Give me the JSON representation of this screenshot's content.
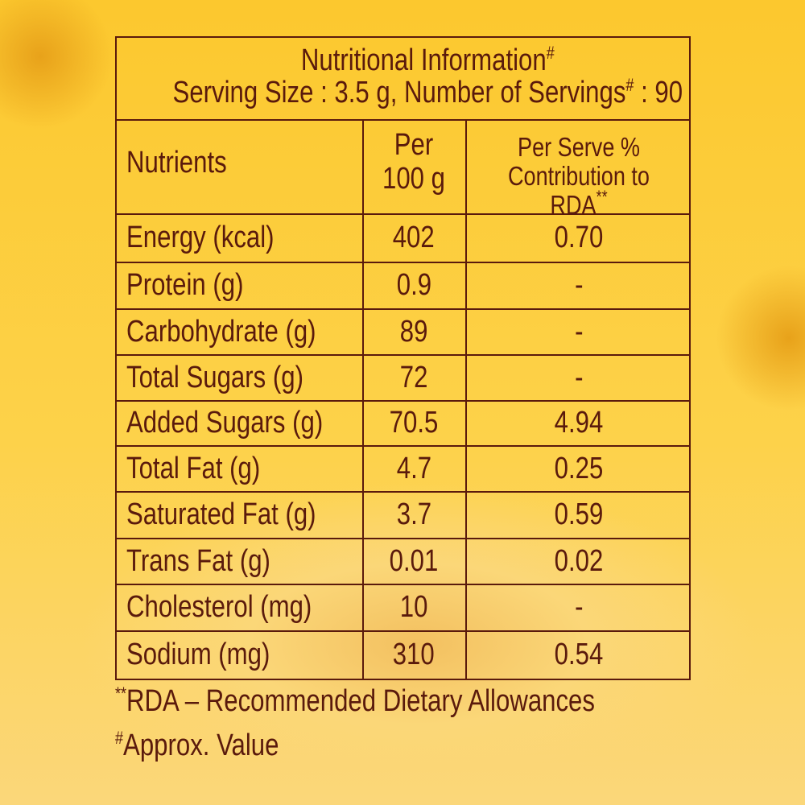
{
  "header": {
    "title": "Nutritional Information",
    "title_mark": "#",
    "serving": "Serving Size : 3.5 g, Number of Servings",
    "serving_mark": "#",
    "servings": ": 90"
  },
  "table": {
    "columns": [
      "Nutrients",
      "Per 100 g",
      "Per Serve % Contribution to RDA"
    ],
    "rda_mark": "**",
    "rows": [
      [
        "Energy (kcal)",
        "402",
        "0.70"
      ],
      [
        "Protein (g)",
        "0.9",
        "-"
      ],
      [
        "Carbohydrate (g)",
        "89",
        "-"
      ],
      [
        "Total Sugars (g)",
        "72",
        "-"
      ],
      [
        "Added Sugars (g)",
        "70.5",
        "4.94"
      ],
      [
        "Total Fat (g)",
        "4.7",
        "0.25"
      ],
      [
        "Saturated Fat (g)",
        "3.7",
        "0.59"
      ],
      [
        "Trans Fat (g)",
        "0.01",
        "0.02"
      ],
      [
        "Cholesterol (mg)",
        "10",
        "-"
      ],
      [
        "Sodium (mg)",
        "310",
        "0.54"
      ]
    ]
  },
  "footnotes": [
    {
      "mark": "**",
      "text": "RDA – Recommended Dietary Allowances"
    },
    {
      "mark": "#",
      "text": "Approx. Value"
    }
  ]
}
